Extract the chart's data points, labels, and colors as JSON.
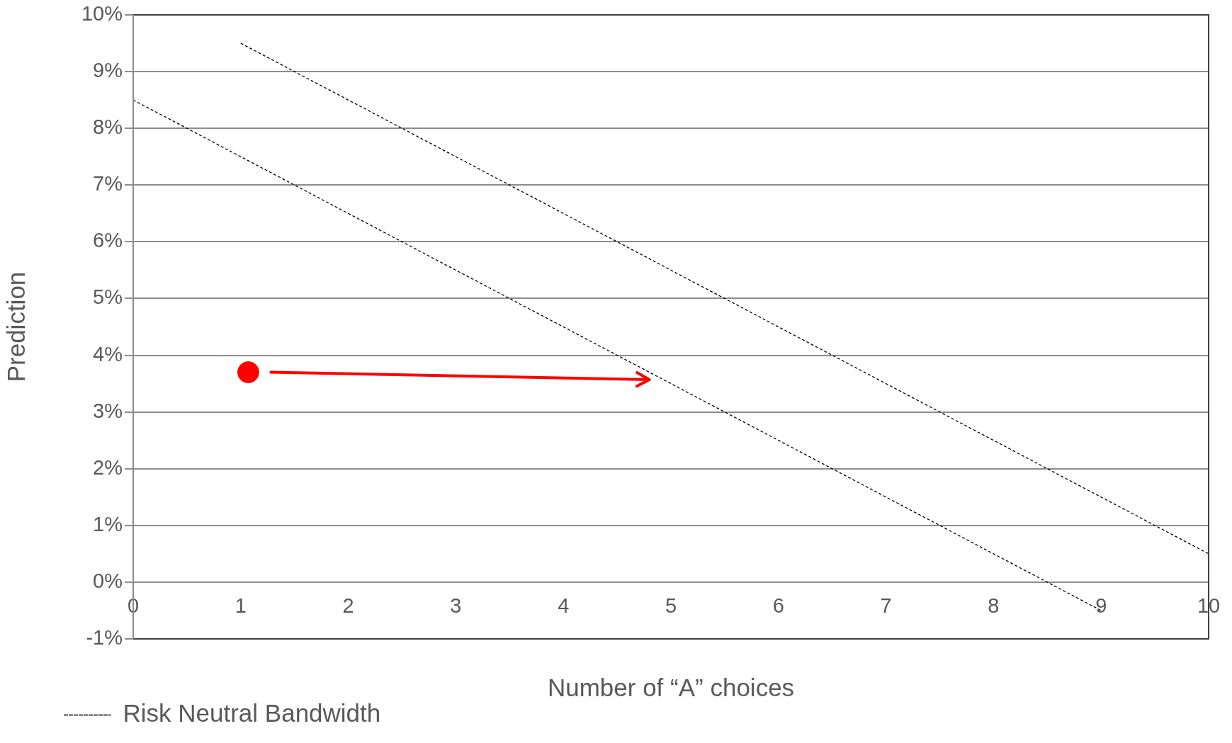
{
  "chart_data": {
    "type": "line",
    "xlabel": "Number of “A” choices",
    "ylabel": "Prediction",
    "xlim": [
      0,
      10
    ],
    "xticks": [
      0,
      1,
      2,
      3,
      4,
      5,
      6,
      7,
      8,
      9,
      10
    ],
    "ylim": [
      -1,
      10
    ],
    "yticks": [
      {
        "value": -1,
        "label": "-1%"
      },
      {
        "value": 0,
        "label": "0%"
      },
      {
        "value": 1,
        "label": "1%"
      },
      {
        "value": 2,
        "label": "2%"
      },
      {
        "value": 3,
        "label": "3%"
      },
      {
        "value": 4,
        "label": "4%"
      },
      {
        "value": 5,
        "label": "5%"
      },
      {
        "value": 6,
        "label": "6%"
      },
      {
        "value": 7,
        "label": "7%"
      },
      {
        "value": 8,
        "label": "8%"
      },
      {
        "value": 9,
        "label": "9%"
      },
      {
        "value": 10,
        "label": "10%"
      }
    ],
    "grid": "y",
    "legend": "bottom left",
    "line_style": "dashed",
    "marker": "none",
    "series": [
      {
        "name": "Risk Neutral Bandwidth",
        "color": "#000000",
        "x": [
          0,
          9
        ],
        "values": [
          8.5,
          -0.5
        ]
      },
      {
        "color": "#000000",
        "x": [
          1,
          10
        ],
        "values": [
          9.5,
          0.5
        ]
      },
      {
        "type": "scatter",
        "color": "#ff0000",
        "marker": "circle",
        "x": [
          1.07
        ],
        "values": [
          3.7
        ]
      }
    ]
  }
}
